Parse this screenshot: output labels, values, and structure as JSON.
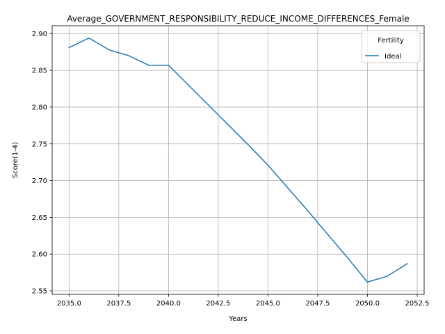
{
  "chart_data": {
    "type": "line",
    "title": "Average_GOVERNMENT_RESPONSIBILITY_REDUCE_INCOME_DIFFERENCES_Female",
    "xlabel": "Years",
    "ylabel": "Score(1-4)",
    "xlim": [
      2034.15,
      2052.85
    ],
    "ylim": [
      2.5453,
      2.9107
    ],
    "xticks": [
      2035.0,
      2037.5,
      2040.0,
      2042.5,
      2045.0,
      2047.5,
      2050.0,
      2052.5
    ],
    "xtick_labels": [
      "2035.0",
      "2037.5",
      "2040.0",
      "2042.5",
      "2045.0",
      "2047.5",
      "2050.0",
      "2052.5"
    ],
    "yticks": [
      2.55,
      2.6,
      2.65,
      2.7,
      2.75,
      2.8,
      2.85,
      2.9
    ],
    "ytick_labels": [
      "2.55",
      "2.60",
      "2.65",
      "2.70",
      "2.75",
      "2.80",
      "2.85",
      "2.90"
    ],
    "grid": true,
    "legend": {
      "title": "Fertility",
      "position": "upper right"
    },
    "series": [
      {
        "name": "Ideal",
        "color": "#1f77b4",
        "x": [
          2035,
          2036,
          2037,
          2038,
          2039,
          2040,
          2041,
          2042,
          2043,
          2044,
          2045,
          2046,
          2047,
          2048,
          2049,
          2050,
          2051,
          2052
        ],
        "y": [
          2.881,
          2.894,
          2.878,
          2.87,
          2.857,
          2.857,
          2.83,
          2.803,
          2.776,
          2.749,
          2.721,
          2.69,
          2.659,
          2.627,
          2.595,
          2.562,
          2.57,
          2.587
        ]
      }
    ]
  }
}
